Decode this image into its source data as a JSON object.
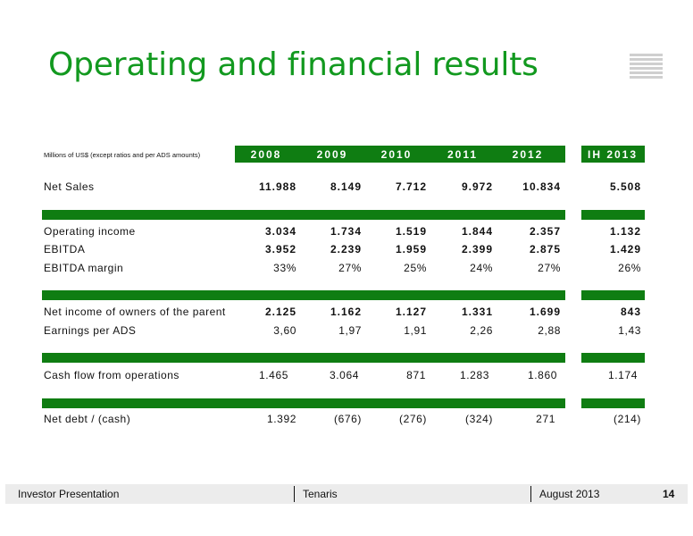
{
  "title": "Operating and financial results",
  "caption": "Millions of US$ (except ratios and per ADS amounts)",
  "columns": [
    "2008",
    "2009",
    "2010",
    "2011",
    "2012"
  ],
  "extra_column": "IH 2013",
  "rows": {
    "net_sales": {
      "label": "Net Sales",
      "values": [
        "11.988",
        "8.149",
        "7.712",
        "9.972",
        "10.834"
      ],
      "extra": "5.508"
    },
    "operating_income": {
      "label": "Operating income",
      "values": [
        "3.034",
        "1.734",
        "1.519",
        "1.844",
        "2.357"
      ],
      "extra": "1.132"
    },
    "ebitda": {
      "label": "EBITDA",
      "values": [
        "3.952",
        "2.239",
        "1.959",
        "2.399",
        "2.875"
      ],
      "extra": "1.429"
    },
    "ebitda_margin": {
      "label": "EBITDA margin",
      "values": [
        "33%",
        "27%",
        "25%",
        "24%",
        "27%"
      ],
      "extra": "26%"
    },
    "net_income": {
      "label": "Net income of owners of the parent",
      "values": [
        "2.125",
        "1.162",
        "1.127",
        "1.331",
        "1.699"
      ],
      "extra": "843"
    },
    "eps": {
      "label": "Earnings per ADS",
      "values": [
        "3,60",
        "1,97",
        "1,91",
        "2,26",
        "2,88"
      ],
      "extra": "1,43"
    },
    "cash_flow": {
      "label": "Cash flow from operations",
      "values": [
        "1.465",
        "3.064",
        "871",
        "1.283",
        "1.860"
      ],
      "extra": "1.174"
    },
    "net_debt": {
      "label": "Net debt / (cash)",
      "values": [
        "1.392",
        "(676)",
        "(276)",
        "(324)",
        "271"
      ],
      "extra": "(214)"
    }
  },
  "footer": {
    "left": "Investor Presentation",
    "center": "Tenaris",
    "right": "August 2013",
    "page": "14"
  },
  "colors": {
    "accent": "#12991f",
    "bar": "#0f7d12",
    "footer_bg": "#ececec"
  }
}
